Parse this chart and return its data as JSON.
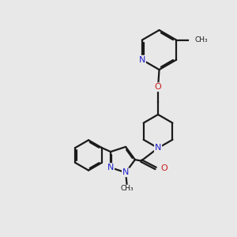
{
  "bg_color": "#e8e8e8",
  "bond_color": "#1a1a1a",
  "nitrogen_color": "#2020cc",
  "oxygen_color": "#cc2020",
  "line_width": 1.6,
  "dbo": 0.06,
  "xlim": [
    0,
    10
  ],
  "ylim": [
    0,
    10
  ]
}
